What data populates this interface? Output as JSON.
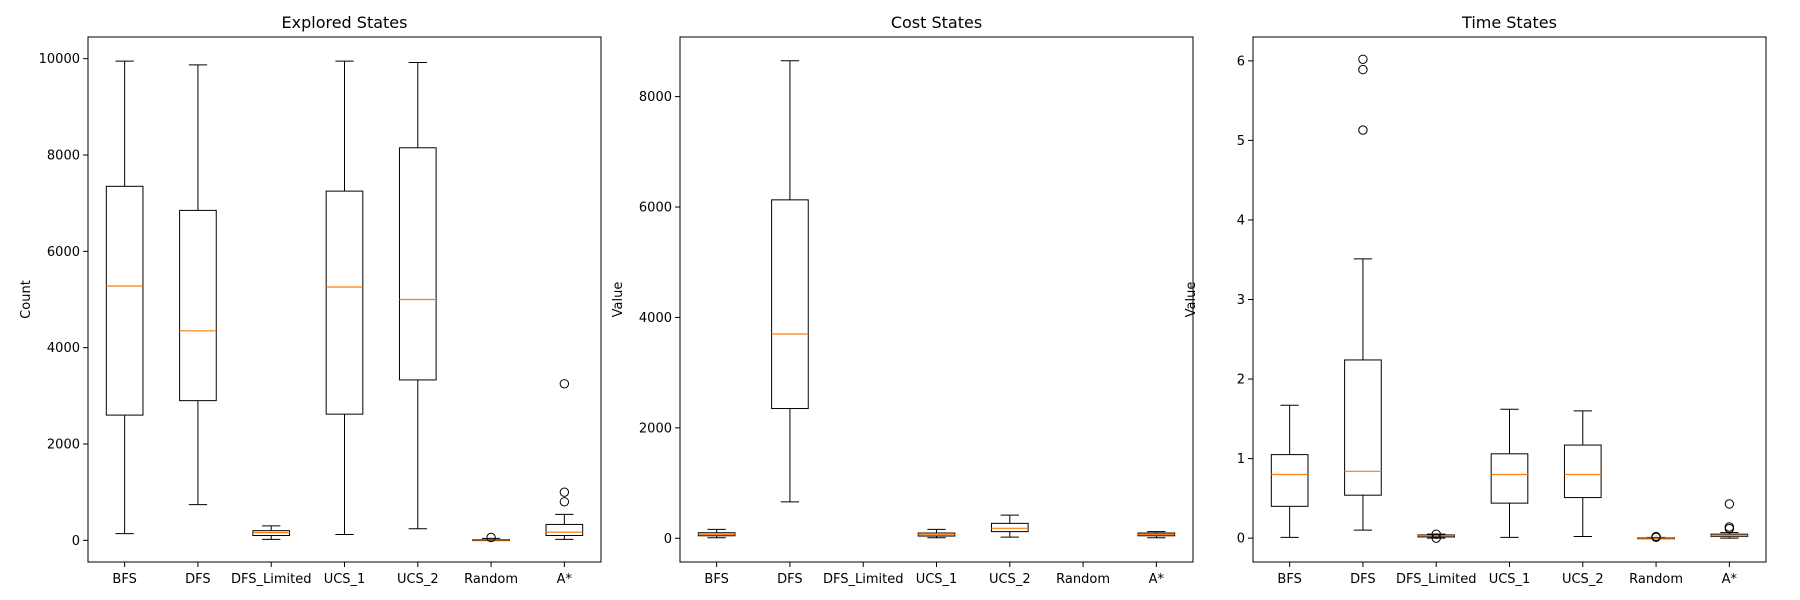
{
  "chart_data": [
    {
      "type": "box",
      "title": "Explored States",
      "xlabel": "",
      "ylabel": "Count",
      "ylim": [
        -450,
        10450
      ],
      "yticks": [
        0,
        2000,
        4000,
        6000,
        8000,
        10000
      ],
      "ytick_labels": [
        "0",
        "2000",
        "4000",
        "6000",
        "8000",
        "10000"
      ],
      "grid": false,
      "categories": [
        "BFS",
        "DFS",
        "DFS_Limited",
        "UCS_1",
        "UCS_2",
        "Random",
        "A*"
      ],
      "boxes": [
        {
          "whislo": 140,
          "q1": 2600,
          "med": 5280,
          "q3": 7350,
          "whishi": 9950,
          "fliers": []
        },
        {
          "whislo": 740,
          "q1": 2900,
          "med": 4350,
          "q3": 6850,
          "whishi": 9870,
          "fliers": []
        },
        {
          "whislo": 20,
          "q1": 100,
          "med": 160,
          "q3": 200,
          "whishi": 300,
          "fliers": []
        },
        {
          "whislo": 120,
          "q1": 2620,
          "med": 5260,
          "q3": 7250,
          "whishi": 9950,
          "fliers": []
        },
        {
          "whislo": 240,
          "q1": 3330,
          "med": 5000,
          "q3": 8150,
          "whishi": 9920,
          "fliers": []
        },
        {
          "whislo": 0,
          "q1": 0,
          "med": 5,
          "q3": 15,
          "whishi": 40,
          "fliers": [
            60
          ]
        },
        {
          "whislo": 20,
          "q1": 100,
          "med": 170,
          "q3": 330,
          "whishi": 540,
          "fliers": [
            800,
            1000,
            3250
          ]
        }
      ]
    },
    {
      "type": "box",
      "title": "Cost States",
      "xlabel": "",
      "ylabel": "Value",
      "ylim": [
        -430,
        9080
      ],
      "yticks": [
        0,
        2000,
        4000,
        6000,
        8000
      ],
      "ytick_labels": [
        "0",
        "2000",
        "4000",
        "6000",
        "8000"
      ],
      "grid": false,
      "categories": [
        "BFS",
        "DFS",
        "DFS_Limited",
        "UCS_1",
        "UCS_2",
        "Random",
        "A*"
      ],
      "boxes": [
        {
          "whislo": 10,
          "q1": 45,
          "med": 70,
          "q3": 100,
          "whishi": 160,
          "fliers": []
        },
        {
          "whislo": 660,
          "q1": 2350,
          "med": 3700,
          "q3": 6130,
          "whishi": 8650,
          "fliers": []
        },
        null,
        {
          "whislo": 10,
          "q1": 40,
          "med": 65,
          "q3": 95,
          "whishi": 160,
          "fliers": []
        },
        {
          "whislo": 20,
          "q1": 120,
          "med": 180,
          "q3": 270,
          "whishi": 420,
          "fliers": []
        },
        null,
        {
          "whislo": 10,
          "q1": 45,
          "med": 70,
          "q3": 95,
          "whishi": 120,
          "fliers": []
        }
      ]
    },
    {
      "type": "box",
      "title": "Time States",
      "xlabel": "",
      "ylabel": "Value",
      "ylim": [
        -0.3,
        6.3
      ],
      "yticks": [
        0,
        1,
        2,
        3,
        4,
        5,
        6
      ],
      "ytick_labels": [
        "0",
        "1",
        "2",
        "3",
        "4",
        "5",
        "6"
      ],
      "grid": false,
      "categories": [
        "BFS",
        "DFS",
        "DFS_Limited",
        "UCS_1",
        "UCS_2",
        "Random",
        "A*"
      ],
      "boxes": [
        {
          "whislo": 0.01,
          "q1": 0.4,
          "med": 0.8,
          "q3": 1.05,
          "whishi": 1.67,
          "fliers": []
        },
        {
          "whislo": 0.1,
          "q1": 0.54,
          "med": 0.84,
          "q3": 2.24,
          "whishi": 3.51,
          "fliers": [
            5.13,
            5.89,
            6.02
          ]
        },
        {
          "whislo": 0.0,
          "q1": 0.015,
          "med": 0.03,
          "q3": 0.04,
          "whishi": 0.05,
          "fliers": [
            0.0,
            0.05
          ]
        },
        {
          "whislo": 0.01,
          "q1": 0.44,
          "med": 0.8,
          "q3": 1.06,
          "whishi": 1.62,
          "fliers": []
        },
        {
          "whislo": 0.02,
          "q1": 0.51,
          "med": 0.8,
          "q3": 1.17,
          "whishi": 1.6,
          "fliers": []
        },
        {
          "whislo": 0.0,
          "q1": 0.0,
          "med": 0.0,
          "q3": 0.005,
          "whishi": 0.01,
          "fliers": [
            0.01,
            0.02
          ]
        },
        {
          "whislo": 0.0,
          "q1": 0.02,
          "med": 0.03,
          "q3": 0.05,
          "whishi": 0.07,
          "fliers": [
            0.12,
            0.14,
            0.43
          ]
        }
      ]
    }
  ],
  "colors": {
    "median": "#ff7f0e",
    "box_edge": "#000000",
    "background": "#ffffff"
  }
}
